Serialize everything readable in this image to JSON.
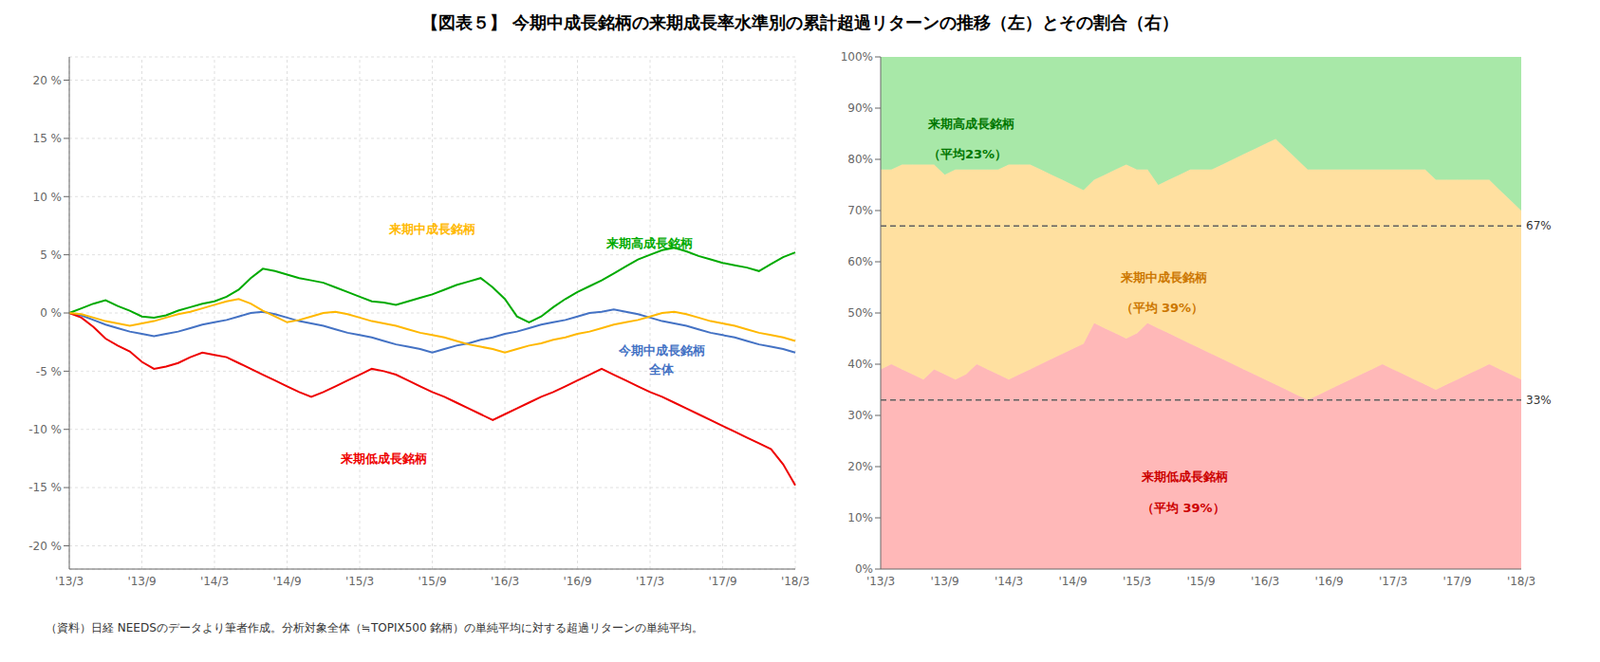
{
  "title": "【図表５】 今期中成長銘柄の来期成長率水準別の累計超過リターンの推移（左）とその割合（右）",
  "footnote": "（資料）日経 NEEDSのデータより筆者作成。分析対象全体（≒TOPIX500 銘柄）の単純平均に対する超過リターンの単純平均。",
  "chart_data": [
    {
      "type": "line",
      "categories": [
        "'13/3",
        null,
        null,
        null,
        null,
        null,
        "'13/9",
        null,
        null,
        null,
        null,
        null,
        "'14/3",
        null,
        null,
        null,
        null,
        null,
        "'14/9",
        null,
        null,
        null,
        null,
        null,
        "'15/3",
        null,
        null,
        null,
        null,
        null,
        "'15/9",
        null,
        null,
        null,
        null,
        null,
        "'16/3",
        null,
        null,
        null,
        null,
        null,
        "'16/9",
        null,
        null,
        null,
        null,
        null,
        "'17/3",
        null,
        null,
        null,
        null,
        null,
        "'17/9",
        null,
        null,
        null,
        null,
        null,
        "'18/3"
      ],
      "ylim": [
        -22,
        22
      ],
      "yticks": [
        {
          "value": -20,
          "label": "-20 %"
        },
        {
          "value": -15,
          "label": "-15 %"
        },
        {
          "value": -10,
          "label": "-10 %"
        },
        {
          "value": -5,
          "label": "-5 %"
        },
        {
          "value": 0,
          "label": "0 %"
        },
        {
          "value": 5,
          "label": "5 %"
        },
        {
          "value": 10,
          "label": "10 %"
        },
        {
          "value": 15,
          "label": "15 %"
        },
        {
          "value": 20,
          "label": "20 %"
        }
      ],
      "grid": true,
      "series": [
        {
          "name": "今期中成長銘柄全体",
          "color": "#4472C4",
          "values": [
            0.0,
            -0.2,
            -0.6,
            -1.0,
            -1.3,
            -1.6,
            -1.8,
            -2.0,
            -1.8,
            -1.6,
            -1.3,
            -1.0,
            -0.8,
            -0.6,
            -0.3,
            -0.0,
            0.1,
            -0.1,
            -0.4,
            -0.7,
            -0.9,
            -1.1,
            -1.4,
            -1.7,
            -1.9,
            -2.1,
            -2.4,
            -2.7,
            -2.9,
            -3.1,
            -3.4,
            -3.1,
            -2.8,
            -2.6,
            -2.3,
            -2.1,
            -1.8,
            -1.6,
            -1.3,
            -1.0,
            -0.8,
            -0.6,
            -0.3,
            -0.0,
            0.1,
            0.3,
            0.1,
            -0.1,
            -0.4,
            -0.7,
            -0.9,
            -1.1,
            -1.4,
            -1.7,
            -1.9,
            -2.1,
            -2.4,
            -2.7,
            -2.9,
            -3.1,
            -3.4
          ]
        },
        {
          "name": "来期低成長銘柄",
          "color": "#EE0000",
          "values": [
            0.0,
            -0.4,
            -1.2,
            -2.2,
            -2.8,
            -3.3,
            -4.2,
            -4.8,
            -4.6,
            -4.3,
            -3.8,
            -3.4,
            -3.6,
            -3.8,
            -4.3,
            -4.8,
            -5.3,
            -5.8,
            -6.3,
            -6.8,
            -7.2,
            -6.8,
            -6.3,
            -5.8,
            -5.3,
            -4.8,
            -5.0,
            -5.3,
            -5.8,
            -6.3,
            -6.8,
            -7.2,
            -7.7,
            -8.2,
            -8.7,
            -9.2,
            -8.7,
            -8.2,
            -7.7,
            -7.2,
            -6.8,
            -6.3,
            -5.8,
            -5.3,
            -4.8,
            -5.3,
            -5.8,
            -6.3,
            -6.8,
            -7.2,
            -7.7,
            -8.2,
            -8.7,
            -9.2,
            -9.7,
            -10.2,
            -10.7,
            -11.2,
            -11.7,
            -13.0,
            -14.8
          ]
        },
        {
          "name": "来期高成長銘柄",
          "color": "#00AA00",
          "values": [
            0.0,
            0.4,
            0.8,
            1.1,
            0.6,
            0.2,
            -0.3,
            -0.4,
            -0.2,
            0.2,
            0.5,
            0.8,
            1.0,
            1.4,
            2.0,
            3.0,
            3.8,
            3.6,
            3.3,
            3.0,
            2.8,
            2.6,
            2.2,
            1.8,
            1.4,
            1.0,
            0.9,
            0.7,
            1.0,
            1.3,
            1.6,
            2.0,
            2.4,
            2.7,
            3.0,
            2.2,
            1.2,
            -0.3,
            -0.8,
            -0.3,
            0.5,
            1.2,
            1.8,
            2.3,
            2.8,
            3.4,
            4.0,
            4.6,
            5.0,
            5.4,
            5.6,
            5.3,
            4.9,
            4.6,
            4.3,
            4.1,
            3.9,
            3.6,
            4.2,
            4.8,
            5.2
          ]
        },
        {
          "name": "来期中成長銘柄",
          "color": "#FFB800",
          "values": [
            0.0,
            -0.1,
            -0.4,
            -0.7,
            -0.9,
            -1.1,
            -0.9,
            -0.7,
            -0.4,
            -0.1,
            0.1,
            0.4,
            0.7,
            1.0,
            1.2,
            0.8,
            0.2,
            -0.3,
            -0.8,
            -0.6,
            -0.3,
            -0.0,
            0.1,
            -0.1,
            -0.4,
            -0.7,
            -0.9,
            -1.1,
            -1.4,
            -1.7,
            -1.9,
            -2.1,
            -2.4,
            -2.7,
            -2.9,
            -3.1,
            -3.4,
            -3.1,
            -2.8,
            -2.6,
            -2.3,
            -2.1,
            -1.8,
            -1.6,
            -1.3,
            -1.0,
            -0.8,
            -0.6,
            -0.3,
            -0.0,
            0.1,
            -0.1,
            -0.4,
            -0.7,
            -0.9,
            -1.1,
            -1.4,
            -1.7,
            -1.9,
            -2.1,
            -2.4
          ]
        }
      ],
      "annotations": [
        {
          "text": "来期中成長銘柄",
          "color": "#FFB800"
        },
        {
          "text": "来期高成長銘柄",
          "color": "#00AA00"
        },
        {
          "text": "来期低成長銘柄",
          "color": "#EE0000"
        },
        {
          "text": "今期中成長銘柄",
          "color": "#4472C4"
        },
        {
          "text": "全体",
          "color": "#4472C4"
        }
      ]
    },
    {
      "type": "area",
      "stacked": true,
      "categories": [
        "'13/3",
        null,
        null,
        null,
        null,
        null,
        "'13/9",
        null,
        null,
        null,
        null,
        null,
        "'14/3",
        null,
        null,
        null,
        null,
        null,
        "'14/9",
        null,
        null,
        null,
        null,
        null,
        "'15/3",
        null,
        null,
        null,
        null,
        null,
        "'15/9",
        null,
        null,
        null,
        null,
        null,
        "'16/3",
        null,
        null,
        null,
        null,
        null,
        "'16/9",
        null,
        null,
        null,
        null,
        null,
        "'17/3",
        null,
        null,
        null,
        null,
        null,
        "'17/9",
        null,
        null,
        null,
        null,
        null,
        "'18/3"
      ],
      "ylim": [
        0,
        100
      ],
      "yticks": [
        {
          "value": 0,
          "label": "0%"
        },
        {
          "value": 10,
          "label": "10%"
        },
        {
          "value": 20,
          "label": "20%"
        },
        {
          "value": 30,
          "label": "30%"
        },
        {
          "value": 40,
          "label": "40%"
        },
        {
          "value": 50,
          "label": "50%"
        },
        {
          "value": 60,
          "label": "60%"
        },
        {
          "value": 70,
          "label": "70%"
        },
        {
          "value": 80,
          "label": "80%"
        },
        {
          "value": 90,
          "label": "90%"
        },
        {
          "value": 100,
          "label": "100%"
        }
      ],
      "grid": false,
      "series": [
        {
          "name": "来期低成長銘柄",
          "color": "#FFB8B8",
          "values": [
            39,
            40,
            39,
            38,
            37,
            39,
            38,
            37,
            38,
            40,
            39,
            38,
            37,
            38,
            39,
            40,
            41,
            42,
            43,
            44,
            48,
            47,
            46,
            45,
            46,
            48,
            47,
            46,
            45,
            44,
            43,
            42,
            41,
            40,
            39,
            38,
            37,
            36,
            35,
            34,
            33,
            34,
            35,
            36,
            37,
            38,
            39,
            40,
            39,
            38,
            37,
            36,
            35,
            36,
            37,
            38,
            39,
            40,
            39,
            38,
            37
          ]
        },
        {
          "name": "来期中成長銘柄",
          "color": "#FFE0A0",
          "values": [
            39,
            38,
            40,
            41,
            42,
            40,
            39,
            41,
            40,
            38,
            39,
            40,
            42,
            41,
            40,
            38,
            36,
            34,
            32,
            30,
            28,
            30,
            32,
            34,
            32,
            30,
            28,
            30,
            32,
            34,
            35,
            36,
            38,
            40,
            42,
            44,
            46,
            48,
            47,
            46,
            45,
            44,
            43,
            42,
            41,
            40,
            39,
            38,
            39,
            40,
            41,
            42,
            41,
            40,
            39,
            38,
            37,
            36,
            35,
            34,
            33
          ]
        },
        {
          "name": "来期高成長銘柄",
          "color": "#A8E8A8",
          "values": [
            22,
            22,
            21,
            21,
            21,
            21,
            23,
            22,
            22,
            22,
            22,
            22,
            21,
            21,
            21,
            22,
            23,
            24,
            25,
            26,
            24,
            23,
            22,
            21,
            22,
            22,
            25,
            24,
            23,
            22,
            22,
            22,
            21,
            20,
            19,
            18,
            17,
            16,
            18,
            20,
            22,
            22,
            22,
            22,
            22,
            22,
            22,
            22,
            22,
            22,
            22,
            22,
            24,
            24,
            24,
            24,
            24,
            24,
            26,
            28,
            30
          ]
        }
      ],
      "hlines": [
        {
          "value": 67,
          "label": "67%",
          "color": "#606060"
        },
        {
          "value": 33,
          "label": "33%",
          "color": "#606060"
        }
      ],
      "annotations": [
        {
          "text": "来期高成長銘柄",
          "color": "#007700"
        },
        {
          "text": "（平均23%）",
          "color": "#007700"
        },
        {
          "text": "来期中成長銘柄",
          "color": "#CC7700"
        },
        {
          "text": "（平均 39%）",
          "color": "#CC7700"
        },
        {
          "text": "来期低成長銘柄",
          "color": "#CC0000"
        },
        {
          "text": "（平均 39%）",
          "color": "#CC0000"
        }
      ]
    }
  ]
}
